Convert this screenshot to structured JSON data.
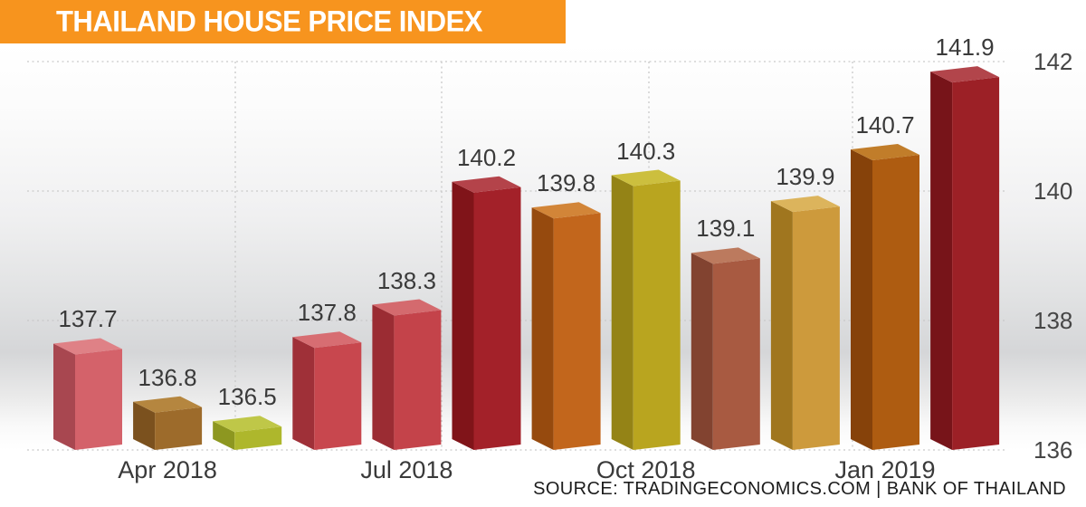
{
  "banner": {
    "title": "THAILAND HOUSE PRICE INDEX",
    "bg_color": "#f7941e",
    "text_color": "#ffffff"
  },
  "source_line": "SOURCE: TRADINGECONOMICS.COM | BANK OF THAILAND",
  "chart_data": {
    "type": "bar",
    "title": "THAILAND HOUSE PRICE INDEX",
    "xlabel": "",
    "ylabel": "",
    "ylim": [
      135.8,
      142.2
    ],
    "y_ticks": [
      142,
      140,
      138,
      136
    ],
    "grid": "dotted horizontal and vertical light-gray lines",
    "legend_position": "none",
    "style": "3d-columns",
    "x_tick_labels": [
      "Apr 2018",
      "Jul 2018",
      "Oct 2018",
      "Jan 2019"
    ],
    "x_tick_bar_index": [
      1,
      4,
      7,
      10
    ],
    "values": [
      137.7,
      136.8,
      136.5,
      137.8,
      138.3,
      140.2,
      139.8,
      140.3,
      139.1,
      139.9,
      140.7,
      141.9
    ],
    "bars": [
      {
        "label": "137.7",
        "value": 137.7,
        "front": "#d4626a",
        "side": "#a84750",
        "top": "#df8186"
      },
      {
        "label": "136.8",
        "value": 136.8,
        "front": "#9d6b2b",
        "side": "#7b511e",
        "top": "#b5863f"
      },
      {
        "label": "136.5",
        "value": 136.5,
        "front": "#aeb72c",
        "side": "#8d9720",
        "top": "#bfc748"
      },
      {
        "label": "137.8",
        "value": 137.8,
        "front": "#c8474e",
        "side": "#9f3038",
        "top": "#d76d72"
      },
      {
        "label": "138.3",
        "value": 138.3,
        "front": "#c4434a",
        "side": "#9b2c33",
        "top": "#d46a6e"
      },
      {
        "label": "140.2",
        "value": 140.2,
        "front": "#a32129",
        "side": "#801419",
        "top": "#b4434a"
      },
      {
        "label": "139.8",
        "value": 139.8,
        "front": "#c2661c",
        "side": "#964a0e",
        "top": "#d28538"
      },
      {
        "label": "140.3",
        "value": 140.3,
        "front": "#b9a51f",
        "side": "#948316",
        "top": "#ccbf3e"
      },
      {
        "label": "139.1",
        "value": 139.1,
        "front": "#a85a41",
        "side": "#824330",
        "top": "#bc7a5e"
      },
      {
        "label": "139.9",
        "value": 139.9,
        "front": "#cd9a3c",
        "side": "#a0761f",
        "top": "#dcb45c"
      },
      {
        "label": "140.7",
        "value": 140.7,
        "front": "#ae5c11",
        "side": "#86420a",
        "top": "#c17d2a"
      },
      {
        "label": "141.9",
        "value": 141.9,
        "front": "#9c2026",
        "side": "#771419",
        "top": "#b2454b"
      }
    ],
    "source": "SOURCE: TRADINGECONOMICS.COM | BANK OF THAILAND"
  }
}
